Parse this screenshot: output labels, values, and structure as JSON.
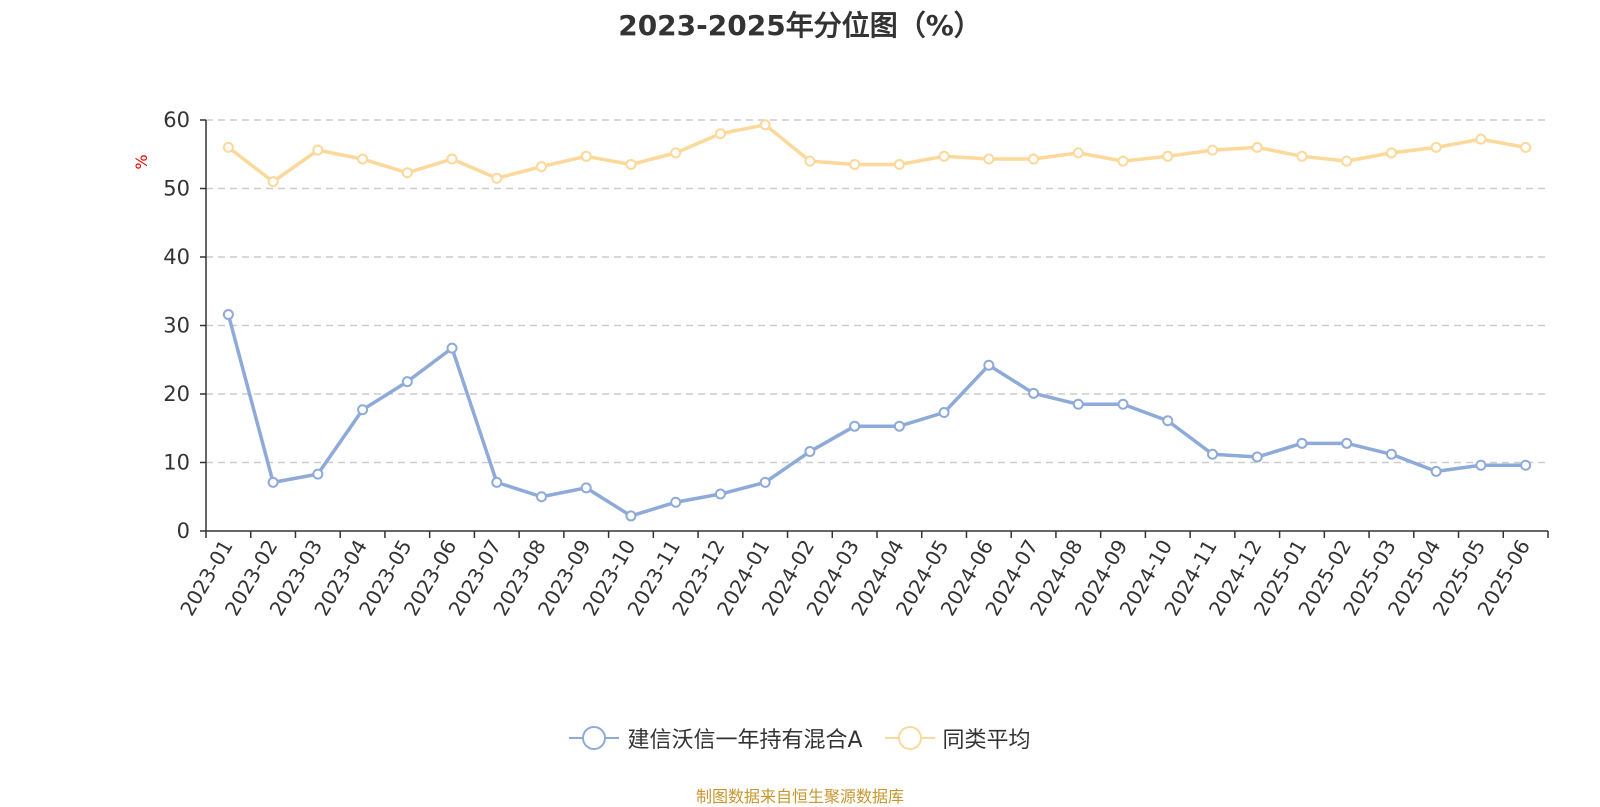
{
  "title": "2023-2025年分位图（%）",
  "source": "制图数据来自恒生聚源数据库",
  "colors": {
    "series_a": "#8eaad9",
    "series_b": "#fcd89a",
    "grid": "#cccccc",
    "axis": "#333333",
    "unit": "#ee0000"
  },
  "chart_data": {
    "type": "line",
    "title": "2023-2025年分位图（%）",
    "ylabel": "%",
    "ylim": [
      0,
      60
    ],
    "yticks": [
      0,
      10,
      20,
      30,
      40,
      50,
      60
    ],
    "grid": true,
    "legend_position": "bottom",
    "x": [
      "2023-01",
      "2023-02",
      "2023-03",
      "2023-04",
      "2023-05",
      "2023-06",
      "2023-07",
      "2023-08",
      "2023-09",
      "2023-10",
      "2023-11",
      "2023-12",
      "2024-01",
      "2024-02",
      "2024-03",
      "2024-04",
      "2024-05",
      "2024-06",
      "2024-07",
      "2024-08",
      "2024-09",
      "2024-10",
      "2024-11",
      "2024-12",
      "2025-01",
      "2025-02",
      "2025-03",
      "2025-04",
      "2025-05",
      "2025-06"
    ],
    "series": [
      {
        "name": "建信沃信一年持有混合A",
        "values": [
          31.6,
          7.1,
          8.3,
          17.7,
          21.8,
          26.7,
          7.1,
          5.0,
          6.3,
          2.2,
          4.2,
          5.4,
          7.1,
          11.6,
          15.3,
          15.3,
          17.3,
          24.2,
          20.1,
          18.5,
          18.5,
          16.1,
          11.2,
          10.8,
          12.8,
          12.8,
          11.2,
          8.7,
          9.6,
          9.6
        ]
      },
      {
        "name": "同类平均",
        "values": [
          56.0,
          51.0,
          55.6,
          54.3,
          52.3,
          54.3,
          51.5,
          53.2,
          54.7,
          53.5,
          55.2,
          58.0,
          59.3,
          54.0,
          53.5,
          53.5,
          54.7,
          54.3,
          54.3,
          55.2,
          54.0,
          54.7,
          55.6,
          56.0,
          54.7,
          54.0,
          55.2,
          56.0,
          57.2,
          56.0
        ]
      }
    ]
  }
}
